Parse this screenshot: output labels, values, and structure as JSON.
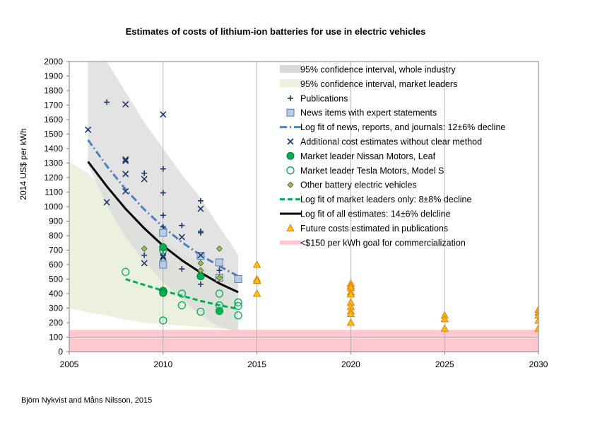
{
  "chart_data": {
    "type": "scatter",
    "title": "Estimates of costs of lithium-ion batteries for use in electric vehicles",
    "xlabel": "",
    "ylabel": "2014 US$ per kWh",
    "xlim": [
      2005,
      2030
    ],
    "ylim": [
      0,
      2000
    ],
    "x_ticks": [
      2005,
      2010,
      2015,
      2020,
      2025,
      2030
    ],
    "y_ticks": [
      0,
      100,
      200,
      300,
      400,
      500,
      600,
      700,
      800,
      900,
      1000,
      1100,
      1200,
      1300,
      1400,
      1500,
      1600,
      1700,
      1800,
      1900,
      2000
    ],
    "grid": "vertical lines every 5 years",
    "legend_position": "top-right",
    "credit": "Björn Nykvist and Måns Nilsson, 2015",
    "colors": {
      "band_industry": "#d9d9d9",
      "band_leaders": "#ebf1de",
      "band_overlap": "#c3c9bd",
      "blue": "#4f81bd",
      "dark_blue": "#1f3864",
      "green": "#00b050",
      "diamond": "#76923c",
      "future": "#ffc000",
      "goal": "#ffc7ce"
    },
    "legend": [
      {
        "key": "band_industry",
        "label": "95% confidence interval, whole industry"
      },
      {
        "key": "band_leaders",
        "label": "95% confidence interval, market leaders"
      },
      {
        "key": "publications",
        "label": "Publications"
      },
      {
        "key": "news",
        "label": "News items with expert statements"
      },
      {
        "key": "fit_news",
        "label": "Log fit of news, reports, and journals: 12±6% decline"
      },
      {
        "key": "additional",
        "label": "Additional cost estimates without clear method"
      },
      {
        "key": "nissan",
        "label": "Market leader Nissan Motors, Leaf"
      },
      {
        "key": "tesla",
        "label": "Market leader Tesla Motors, Model S"
      },
      {
        "key": "other_bev",
        "label": "Other battery electric vehicles"
      },
      {
        "key": "fit_leaders",
        "label": "Log fit of market leaders only: 8±8% decline"
      },
      {
        "key": "fit_all",
        "label": "Log fit of all estimates: 14±6% delcline"
      },
      {
        "key": "future",
        "label": "Future costs estimated in publications"
      },
      {
        "key": "goal",
        "label": "<$150 per kWh goal for commercialization"
      }
    ],
    "bands": {
      "whole_industry": {
        "x": [
          2006,
          2007,
          2008,
          2009,
          2010,
          2011,
          2012,
          2013,
          2014
        ],
        "upper": [
          2000,
          2000,
          1790,
          1580,
          1400,
          1220,
          1060,
          860,
          670
        ],
        "lower": [
          1290,
          1010,
          790,
          620,
          480,
          360,
          250,
          170,
          140
        ]
      },
      "market_leaders": {
        "x": [
          2005,
          2006,
          2007,
          2008,
          2009,
          2010,
          2011,
          2012,
          2013,
          2014
        ],
        "upper": [
          1310,
          1230,
          1110,
          990,
          880,
          770,
          680,
          600,
          540,
          480
        ],
        "lower": [
          300,
          270,
          250,
          220,
          200,
          190,
          180,
          170,
          160,
          150
        ]
      }
    },
    "series": [
      {
        "name": "Publications",
        "marker": "plus",
        "points": [
          [
            2007,
            1720
          ],
          [
            2009,
            1230
          ],
          [
            2009,
            665
          ],
          [
            2010,
            1260
          ],
          [
            2010,
            1095
          ],
          [
            2010,
            940
          ],
          [
            2010,
            860
          ],
          [
            2010,
            700
          ],
          [
            2011,
            870
          ],
          [
            2011,
            570
          ],
          [
            2012,
            1040
          ],
          [
            2012,
            830
          ],
          [
            2012,
            820
          ],
          [
            2012,
            660
          ],
          [
            2012,
            560
          ],
          [
            2012,
            465
          ],
          [
            2013,
            560
          ],
          [
            2013,
            510
          ]
        ]
      },
      {
        "name": "News items with expert statements",
        "marker": "square",
        "points": [
          [
            2010,
            820
          ],
          [
            2010,
            600
          ],
          [
            2012,
            660
          ],
          [
            2013,
            615
          ],
          [
            2013,
            510
          ],
          [
            2014,
            500
          ]
        ]
      },
      {
        "name": "Additional cost estimates without clear method",
        "marker": "x",
        "points": [
          [
            2006,
            1530
          ],
          [
            2007,
            1030
          ],
          [
            2008,
            1705
          ],
          [
            2008,
            1325
          ],
          [
            2008,
            1315
          ],
          [
            2008,
            1225
          ],
          [
            2008,
            1105
          ],
          [
            2009,
            1190
          ],
          [
            2009,
            610
          ],
          [
            2010,
            1635
          ],
          [
            2010,
            660
          ],
          [
            2010,
            650
          ],
          [
            2011,
            790
          ],
          [
            2012,
            985
          ],
          [
            2012,
            665
          ],
          [
            2012,
            520
          ]
        ]
      },
      {
        "name": "Market leader Nissan Motors, Leaf",
        "marker": "filled-circle",
        "points": [
          [
            2010,
            720
          ],
          [
            2010,
            420
          ],
          [
            2010,
            405
          ],
          [
            2012,
            520
          ],
          [
            2013,
            280
          ]
        ]
      },
      {
        "name": "Market leader Tesla Motors, Model S",
        "marker": "open-circle",
        "points": [
          [
            2008,
            550
          ],
          [
            2010,
            700
          ],
          [
            2010,
            215
          ],
          [
            2011,
            400
          ],
          [
            2011,
            320
          ],
          [
            2012,
            275
          ],
          [
            2013,
            400
          ],
          [
            2013,
            320
          ],
          [
            2013,
            280
          ],
          [
            2014,
            340
          ],
          [
            2014,
            315
          ],
          [
            2014,
            250
          ]
        ]
      },
      {
        "name": "Other battery electric vehicles",
        "marker": "diamond",
        "points": [
          [
            2009,
            710
          ],
          [
            2012,
            610
          ],
          [
            2012,
            560
          ],
          [
            2013,
            710
          ],
          [
            2013,
            510
          ]
        ]
      },
      {
        "name": "Future costs estimated in publications",
        "marker": "triangle",
        "points": [
          [
            2015,
            600
          ],
          [
            2015,
            500
          ],
          [
            2015,
            490
          ],
          [
            2015,
            400
          ],
          [
            2020,
            470
          ],
          [
            2020,
            455
          ],
          [
            2020,
            440
          ],
          [
            2020,
            410
          ],
          [
            2020,
            395
          ],
          [
            2020,
            340
          ],
          [
            2020,
            310
          ],
          [
            2020,
            280
          ],
          [
            2020,
            260
          ],
          [
            2020,
            200
          ],
          [
            2025,
            250
          ],
          [
            2025,
            225
          ],
          [
            2025,
            160
          ],
          [
            2030,
            290
          ],
          [
            2030,
            270
          ],
          [
            2030,
            250
          ],
          [
            2030,
            215
          ],
          [
            2030,
            160
          ]
        ]
      }
    ],
    "fits": [
      {
        "name": "Log fit of news, reports, and journals: 12±6% decline",
        "style": "dash-dot",
        "x": [
          2006,
          2007,
          2008,
          2009,
          2010,
          2011,
          2012,
          2013,
          2014
        ],
        "y": [
          1460,
          1280,
          1120,
          980,
          860,
          755,
          665,
          590,
          520
        ]
      },
      {
        "name": "Log fit of market leaders only: 8±8% decline",
        "style": "dashed",
        "x": [
          2008,
          2009,
          2010,
          2011,
          2012,
          2013,
          2014
        ],
        "y": [
          500,
          460,
          420,
          385,
          350,
          320,
          295
        ]
      },
      {
        "name": "Log fit of all estimates: 14±6% delcline",
        "style": "solid",
        "x": [
          2006,
          2007,
          2008,
          2009,
          2010,
          2011,
          2012,
          2013,
          2014
        ],
        "y": [
          1310,
          1140,
          985,
          850,
          730,
          630,
          545,
          470,
          410
        ]
      }
    ],
    "goal_band": [
      0,
      150
    ]
  }
}
